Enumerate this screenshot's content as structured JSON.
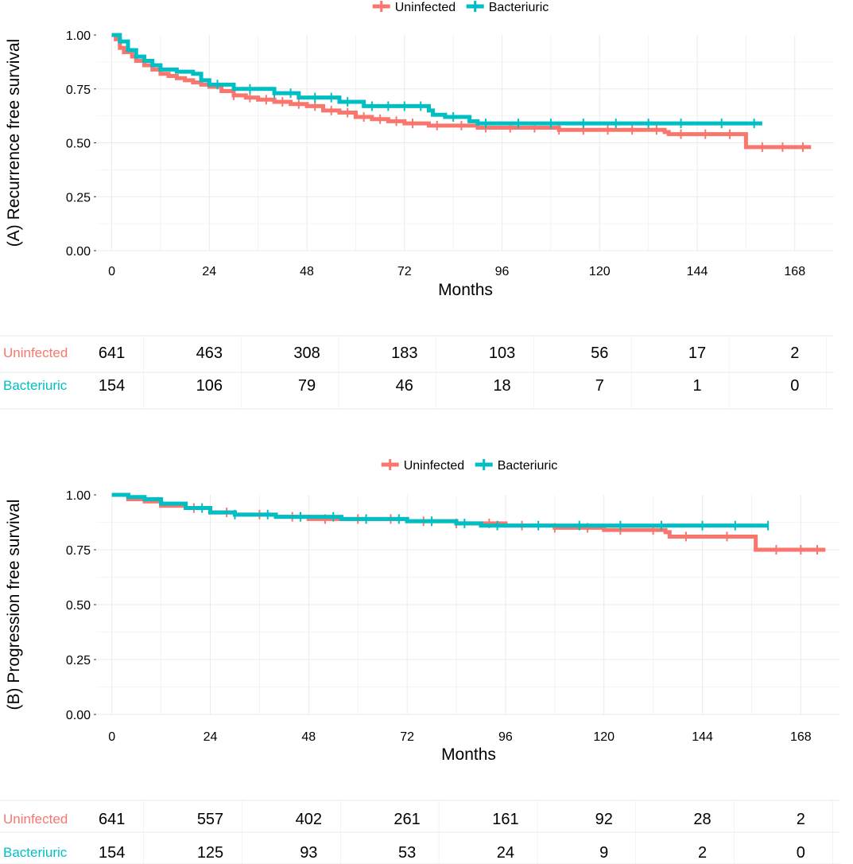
{
  "colors": {
    "uninfected": "#F8766D",
    "bacteriuric": "#00BFC4",
    "grid": "#ebebeb",
    "text": "#000000"
  },
  "panels": [
    {
      "legend": {
        "items": [
          {
            "label": "Uninfected",
            "color": "#F8766D"
          },
          {
            "label": "Bacteriuric",
            "color": "#00BFC4"
          }
        ]
      },
      "risk_table": {
        "groups": [
          {
            "label": "Uninfected",
            "color": "#F8766D",
            "counts": [
              "641",
              "463",
              "308",
              "183",
              "103",
              "56",
              "17",
              "2"
            ]
          },
          {
            "label": "Bacteriuric",
            "color": "#00BFC4",
            "counts": [
              "154",
              "106",
              "79",
              "46",
              "18",
              "7",
              "1",
              "0"
            ]
          }
        ]
      }
    },
    {
      "legend": {
        "items": [
          {
            "label": "Uninfected",
            "color": "#F8766D"
          },
          {
            "label": "Bacteriuric",
            "color": "#00BFC4"
          }
        ]
      },
      "risk_table": {
        "groups": [
          {
            "label": "Uninfected",
            "color": "#F8766D",
            "counts": [
              "641",
              "557",
              "402",
              "261",
              "161",
              "92",
              "28",
              "2"
            ]
          },
          {
            "label": "Bacteriuric",
            "color": "#00BFC4",
            "counts": [
              "154",
              "125",
              "93",
              "53",
              "24",
              "9",
              "2",
              "0"
            ]
          }
        ]
      }
    }
  ],
  "chart_data": [
    {
      "type": "line",
      "ylabel": "(A) Recurrence free survival",
      "xlabel": "Months",
      "xlim": [
        0,
        174
      ],
      "ylim": [
        0,
        1
      ],
      "x_ticks": [
        "0",
        "24",
        "48",
        "72",
        "96",
        "120",
        "144",
        "168"
      ],
      "y_ticks": [
        "0.00",
        "0.25",
        "0.50",
        "0.75",
        "1.00"
      ],
      "grid": true,
      "legend": "top",
      "risk_times": [
        0,
        24,
        48,
        72,
        96,
        120,
        144,
        168
      ],
      "series": [
        {
          "name": "Uninfected",
          "color": "#F8766D",
          "x": [
            0,
            1,
            2,
            3,
            5,
            6,
            8,
            10,
            12,
            14,
            16,
            18,
            20,
            22,
            24,
            27,
            30,
            33,
            36,
            40,
            44,
            48,
            52,
            56,
            60,
            64,
            68,
            72,
            78,
            84,
            90,
            96,
            110,
            120,
            136,
            137,
            155,
            156,
            172
          ],
          "y": [
            1.0,
            0.98,
            0.94,
            0.92,
            0.9,
            0.88,
            0.86,
            0.84,
            0.82,
            0.81,
            0.8,
            0.79,
            0.78,
            0.77,
            0.76,
            0.74,
            0.72,
            0.71,
            0.7,
            0.69,
            0.68,
            0.67,
            0.65,
            0.64,
            0.62,
            0.61,
            0.6,
            0.59,
            0.58,
            0.58,
            0.57,
            0.57,
            0.56,
            0.56,
            0.55,
            0.54,
            0.54,
            0.48,
            0.48
          ],
          "censor_x": [
            30,
            34,
            38,
            42,
            46,
            50,
            54,
            58,
            62,
            66,
            70,
            74,
            80,
            86,
            92,
            98,
            104,
            110,
            116,
            122,
            128,
            134,
            140,
            146,
            152,
            160,
            165,
            170
          ]
        },
        {
          "name": "Bacteriuric",
          "color": "#00BFC4",
          "x": [
            0,
            2,
            4,
            6,
            8,
            10,
            12,
            16,
            20,
            22,
            24,
            30,
            40,
            46,
            56,
            62,
            70,
            75,
            78,
            79,
            82,
            88,
            90,
            160
          ],
          "y": [
            1.0,
            0.97,
            0.93,
            0.9,
            0.88,
            0.86,
            0.84,
            0.83,
            0.82,
            0.79,
            0.77,
            0.75,
            0.73,
            0.71,
            0.69,
            0.67,
            0.67,
            0.67,
            0.65,
            0.63,
            0.62,
            0.6,
            0.59,
            0.59
          ],
          "censor_x": [
            26,
            34,
            40,
            44,
            50,
            54,
            58,
            64,
            68,
            72,
            76,
            84,
            92,
            100,
            108,
            116,
            124,
            132,
            140,
            150,
            158
          ]
        }
      ]
    },
    {
      "type": "line",
      "ylabel": "(B) Progression free survival",
      "xlabel": "Months",
      "xlim": [
        0,
        174
      ],
      "ylim": [
        0,
        1
      ],
      "x_ticks": [
        "0",
        "24",
        "48",
        "72",
        "96",
        "120",
        "144",
        "168"
      ],
      "y_ticks": [
        "0.00",
        "0.25",
        "0.50",
        "0.75",
        "1.00"
      ],
      "grid": true,
      "legend": "top",
      "risk_times": [
        0,
        24,
        48,
        72,
        96,
        120,
        144,
        168
      ],
      "series": [
        {
          "name": "Uninfected",
          "color": "#F8766D",
          "x": [
            0,
            4,
            8,
            12,
            18,
            24,
            30,
            40,
            48,
            60,
            72,
            84,
            96,
            108,
            120,
            128,
            135,
            136,
            156,
            157,
            174
          ],
          "y": [
            1.0,
            0.98,
            0.97,
            0.95,
            0.94,
            0.92,
            0.91,
            0.9,
            0.89,
            0.89,
            0.88,
            0.87,
            0.86,
            0.85,
            0.84,
            0.84,
            0.83,
            0.81,
            0.81,
            0.75,
            0.75
          ],
          "censor_x": [
            20,
            28,
            36,
            44,
            52,
            60,
            68,
            76,
            84,
            92,
            100,
            108,
            116,
            124,
            132,
            140,
            150,
            162,
            168,
            172
          ]
        },
        {
          "name": "Bacteriuric",
          "color": "#00BFC4",
          "x": [
            0,
            4,
            8,
            12,
            18,
            24,
            30,
            40,
            56,
            64,
            72,
            84,
            90,
            96,
            160
          ],
          "y": [
            1.0,
            0.99,
            0.98,
            0.96,
            0.94,
            0.92,
            0.91,
            0.9,
            0.89,
            0.89,
            0.88,
            0.87,
            0.86,
            0.86,
            0.86
          ],
          "censor_x": [
            22,
            30,
            38,
            46,
            54,
            62,
            70,
            78,
            86,
            94,
            104,
            114,
            124,
            134,
            144,
            152,
            160
          ]
        }
      ]
    }
  ]
}
